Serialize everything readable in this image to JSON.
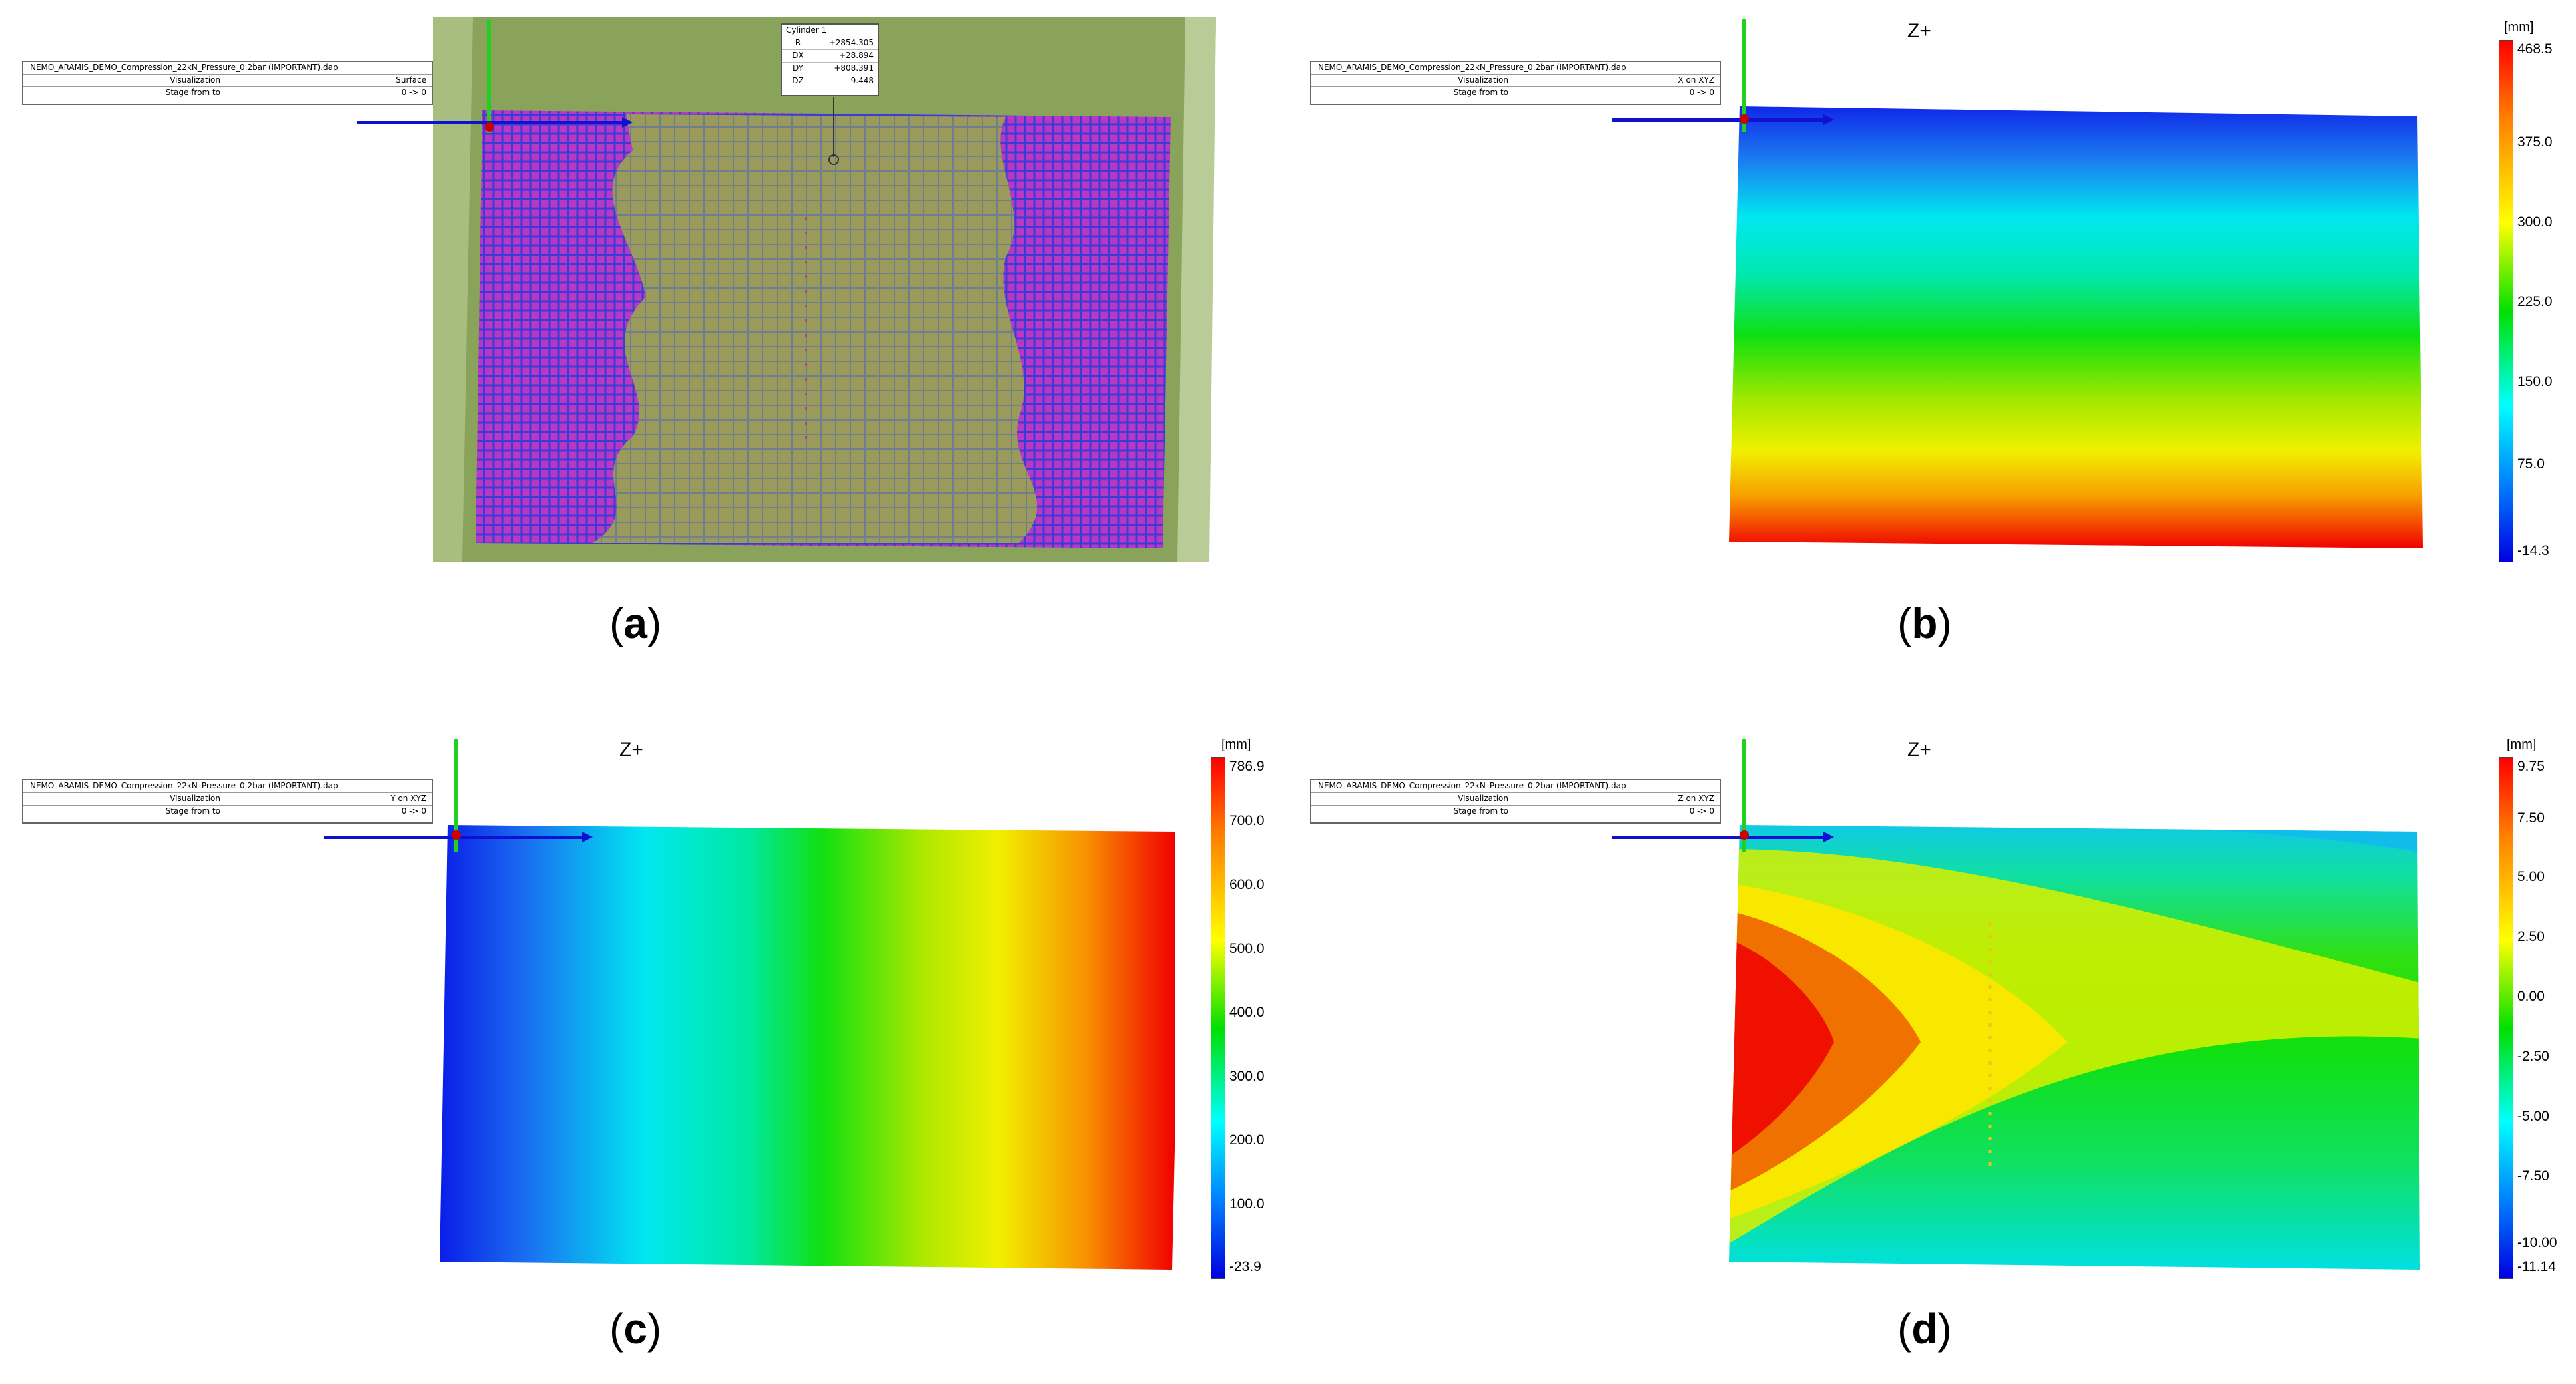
{
  "info_box": {
    "file": "NEMO_ARAMIS_DEMO_Compression_22kN_Pressure_0.2bar (IMPORTANT).dap",
    "visualization_label": "Visualization",
    "stage_label": "Stage from to",
    "stage_value": "0 -> 0"
  },
  "panels": {
    "a": {
      "caption": "a",
      "visualization": "Surface"
    },
    "b": {
      "caption": "b",
      "visualization": "X on XYZ",
      "view": "Z+",
      "unit": "[mm]",
      "ticks": [
        "468.5",
        "375.0",
        "300.0",
        "225.0",
        "150.0",
        "75.0",
        "-14.3"
      ]
    },
    "c": {
      "caption": "c",
      "visualization": "Y on XYZ",
      "view": "Z+",
      "unit": "[mm]",
      "ticks": [
        "786.9",
        "700.0",
        "600.0",
        "500.0",
        "400.0",
        "300.0",
        "200.0",
        "100.0",
        "-23.9"
      ]
    },
    "d": {
      "caption": "d",
      "visualization": "Z on XYZ",
      "view": "Z+",
      "unit": "[mm]",
      "ticks": [
        "9.75",
        "7.50",
        "5.00",
        "2.50",
        "0.00",
        "-2.50",
        "-5.00",
        "-7.50",
        "-10.00",
        "-11.14"
      ]
    }
  },
  "cylinder": {
    "name": "Cylinder 1",
    "rows": [
      {
        "label": "R",
        "value": "+2854.305"
      },
      {
        "label": "DX",
        "value": "+28.894"
      },
      {
        "label": "DY",
        "value": "+808.391"
      },
      {
        "label": "DZ",
        "value": "-9.448"
      }
    ]
  },
  "colors": {
    "axis_green": "#22d022",
    "axis_blue": "#1010d0",
    "sheet_green": "#8aa35a",
    "mesh_magenta": "#c040c8"
  }
}
